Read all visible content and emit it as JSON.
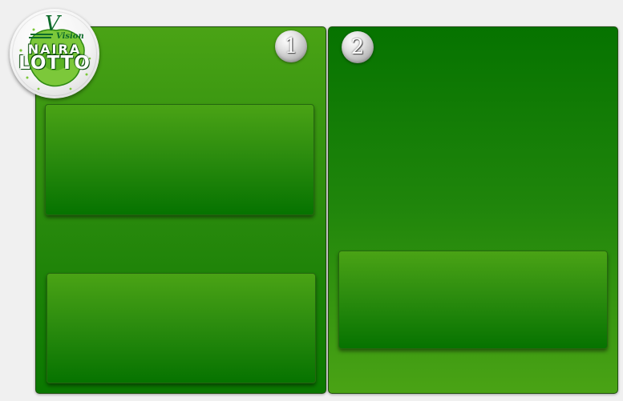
{
  "logo": {
    "brand_script": "Vision",
    "line1": "NAIRA",
    "line2": "LOTTO",
    "icon": "naira-lotto-logo"
  },
  "panels": [
    {
      "badge": "1",
      "cards": 2
    },
    {
      "badge": "2",
      "cards": 1
    }
  ],
  "colors": {
    "background": "#f0f0f0",
    "green_light": "#4aa315",
    "green_dark": "#067300",
    "badge_silver": "#c8c8c8"
  }
}
